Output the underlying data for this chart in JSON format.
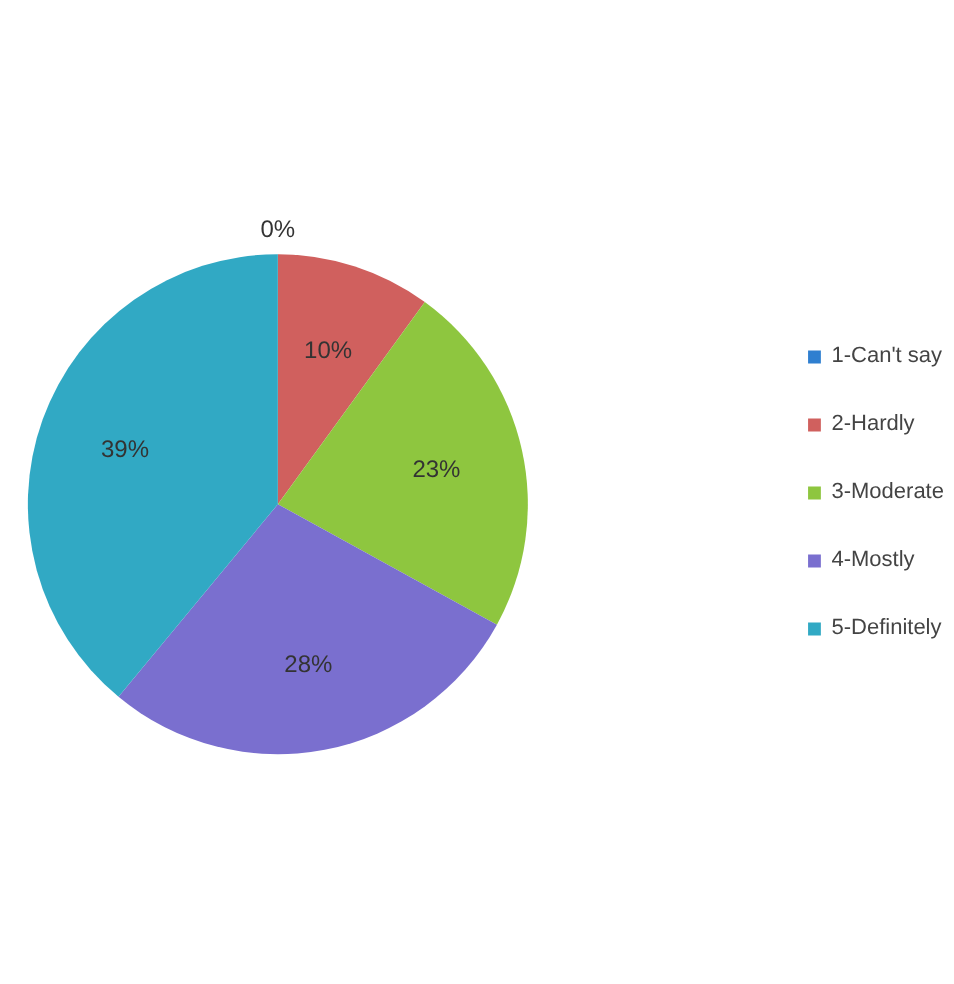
{
  "chart_data": {
    "type": "pie",
    "categories": [
      "1-Can't say",
      "2-Hardly",
      "3-Moderate",
      "4-Mostly",
      "5-Definitely"
    ],
    "values": [
      0,
      10,
      23,
      28,
      39
    ],
    "colors": [
      "#2f7fd0",
      "#d0605e",
      "#8ec63f",
      "#7a6fcf",
      "#31a9c4"
    ],
    "value_labels": [
      "0%",
      "10%",
      "23%",
      "28%",
      "39%"
    ],
    "legend": "right"
  }
}
